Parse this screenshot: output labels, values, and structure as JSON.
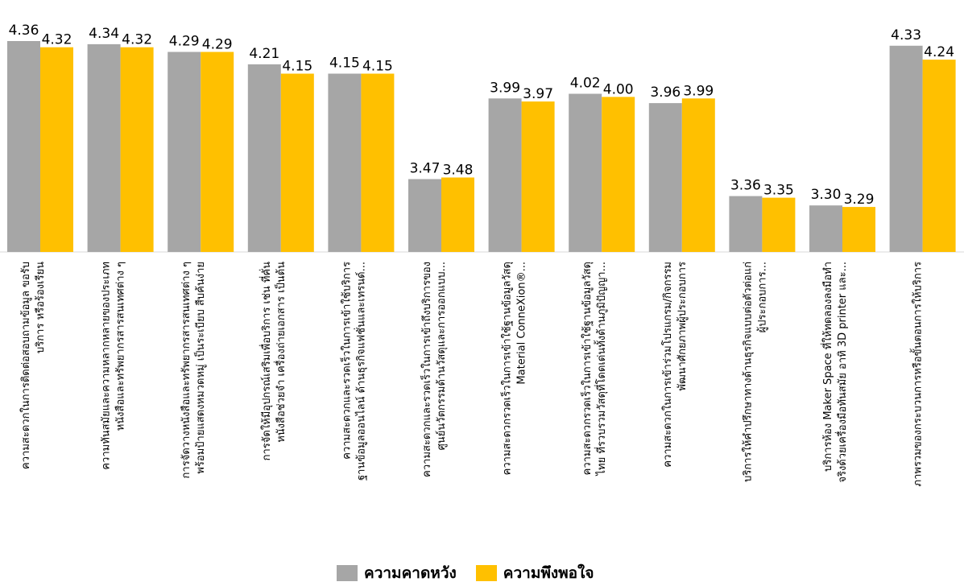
{
  "chart_data": {
    "type": "bar",
    "categories": [
      [
        "ความสะดวกในการติดต่อสอบถามข้อมูล ขอรับ",
        "บริการ หรือร้องเรียน"
      ],
      [
        "ความทันสมัยและความหลากหลายของประเภท",
        "หนังสือและทรัพยากรสารสนเทศต่าง ๆ"
      ],
      [
        "การจัดวางหนังสือและทรัพยากรสารสนเทศต่าง ๆ",
        "พร้อมป้ายแสดงหมวดหมู่ เป็นระเบียบ สืบค้นง่าย"
      ],
      [
        "การจัดให้มีอุปกรณ์เสริมเพื่อบริการ เช่น ที่คั่น",
        "หนังสือช่วยจำ เครื่องถ่ายเอกสาร เป็นต้น"
      ],
      [
        "ความสะดวกและรวดเร็วในการเข้าใช้บริการ",
        "ฐานข้อมูลออนไลน์ ด้านธุรกิจแฟชั่นและเทรนด์..."
      ],
      [
        "ความสะดวกและรวดเร็วในการเข้าถึงบริการของ",
        "ศูนย์นวัตกรรมด้านวัสดุและการออกแบบ..."
      ],
      [
        "ความสะดวกรวดเร็วในการเข้าใช้ฐานข้อมูลวัสดุ",
        "Material ConneXion®..."
      ],
      [
        "ความสะดวกรวดเร็วในการเข้าใช้ฐานข้อมูลวัสดุ",
        "ไทย ที่รวบรวมวัสดุที่โดดเด่นทั้งด้านภูมิปัญญา..."
      ],
      [
        "ความสะดวกในการเข้าร่วมโปรแกรม/กิจกรรม",
        "พัฒนาศักยภาพผู้ประกอบการ"
      ],
      [
        "บริการให้คำปรึกษาทางด้านธุรกิจแบบต่อตัวต่อแก่",
        "ผู้ประกอบการ..."
      ],
      [
        "บริการห้อง Maker Space ที่ให้ทดลองลงมือทำ",
        "จริงด้วยเครื่องมือทันสมัย อาทิ 3D printer และ..."
      ],
      [
        "ภาพรวมของกระบวนการหรือขั้นตอนการให้บริการ"
      ]
    ],
    "series": [
      {
        "name": "ความคาดหวัง",
        "color": "#a6a6a6",
        "values": [
          4.36,
          4.34,
          4.29,
          4.21,
          4.15,
          3.47,
          3.99,
          4.02,
          3.96,
          3.36,
          3.3,
          4.33
        ]
      },
      {
        "name": "ความพึงพอใจ",
        "color": "#ffc000",
        "values": [
          4.32,
          4.32,
          4.29,
          4.15,
          4.15,
          3.48,
          3.97,
          4.0,
          3.99,
          3.35,
          3.29,
          4.24
        ]
      }
    ],
    "value_labels": [
      [
        "4.36",
        "4.34",
        "4.29",
        "4.21",
        "4.15",
        "3.47",
        "3.99",
        "4.02",
        "3.96",
        "3.36",
        "3.30",
        "4.33"
      ],
      [
        "4.32",
        "4.32",
        "4.29",
        "4.15",
        "4.15",
        "3.48",
        "3.97",
        "4.00",
        "3.99",
        "3.35",
        "3.29",
        "4.24"
      ]
    ],
    "ylim": [
      0,
      4.36
    ],
    "legend_position": "bottom",
    "grid": false
  },
  "legend": {
    "items": [
      {
        "label": "ความคาดหวัง",
        "color": "#a6a6a6"
      },
      {
        "label": "ความพึงพอใจ",
        "color": "#ffc000"
      }
    ]
  }
}
